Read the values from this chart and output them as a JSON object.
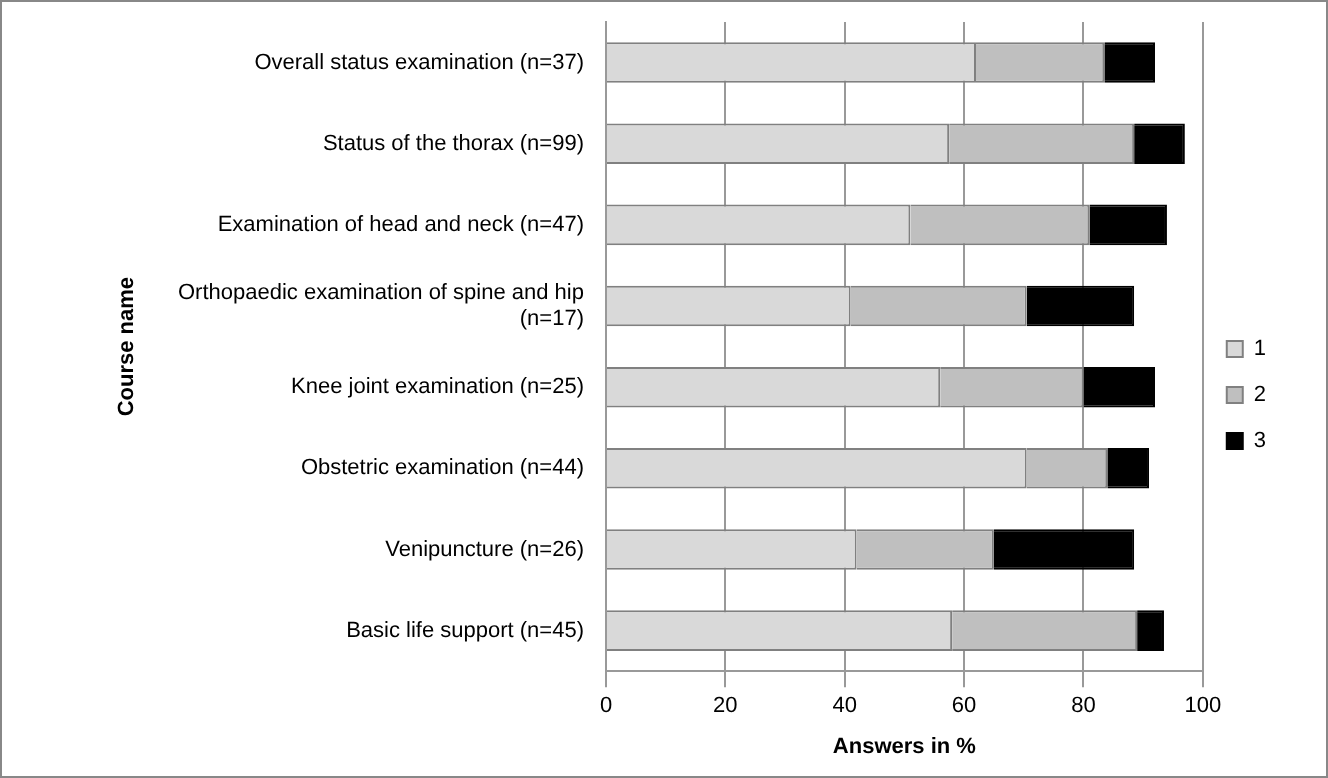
{
  "chart_data": {
    "type": "bar",
    "orientation": "horizontal",
    "stacked": true,
    "xlabel": "Answers in %",
    "ylabel": "Course name",
    "categories": [
      "Overall status examination (n=37)",
      "Status of the thorax (n=99)",
      "Examination of head and neck (n=47)",
      "Orthopaedic examination of spine and hip (n=17)",
      "Knee joint examination (n=25)",
      "Obstetric examination (n=44)",
      "Venipuncture (n=26)",
      "Basic life support (n=45)"
    ],
    "series": [
      {
        "name": "1",
        "color": "#d9d9d9",
        "values": [
          62,
          57.5,
          51,
          41,
          56,
          70.5,
          42,
          58
        ]
      },
      {
        "name": "2",
        "color": "#bfbfbf",
        "values": [
          21.5,
          31,
          30,
          29.5,
          24,
          13.5,
          23,
          31
        ]
      },
      {
        "name": "3",
        "color": "#000000",
        "values": [
          8.5,
          8.5,
          13,
          18,
          12,
          7,
          23.5,
          4.5
        ]
      }
    ],
    "xlim": [
      0,
      100
    ],
    "xticks": [
      0,
      20,
      40,
      60,
      80,
      100
    ],
    "grid": "x",
    "legend": "right"
  }
}
